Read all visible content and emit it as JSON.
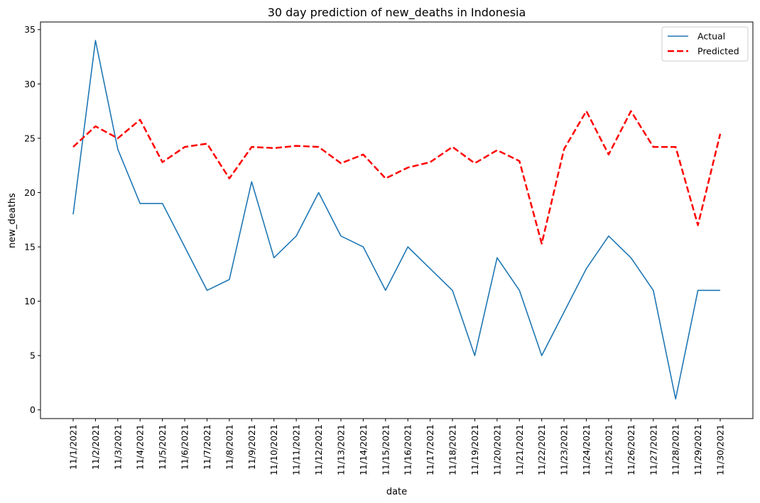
{
  "chart_data": {
    "type": "line",
    "title": "30 day prediction of new_deaths in Indonesia",
    "xlabel": "date",
    "ylabel": "new_deaths",
    "x": [
      "11/1/2021",
      "11/2/2021",
      "11/3/2021",
      "11/4/2021",
      "11/5/2021",
      "11/6/2021",
      "11/7/2021",
      "11/8/2021",
      "11/9/2021",
      "11/10/2021",
      "11/11/2021",
      "11/12/2021",
      "11/13/2021",
      "11/14/2021",
      "11/15/2021",
      "11/16/2021",
      "11/17/2021",
      "11/18/2021",
      "11/19/2021",
      "11/20/2021",
      "11/21/2021",
      "11/22/2021",
      "11/23/2021",
      "11/24/2021",
      "11/25/2021",
      "11/26/2021",
      "11/27/2021",
      "11/28/2021",
      "11/29/2021",
      "11/30/2021"
    ],
    "ylim": [
      -0.8,
      35.7
    ],
    "yticks": [
      0,
      5,
      10,
      15,
      20,
      25,
      30,
      35
    ],
    "grid": false,
    "legend_position": "top-right",
    "series": [
      {
        "name": "Actual",
        "color": "#1f77b4",
        "style": "solid",
        "values": [
          18,
          34,
          24,
          19,
          19,
          15,
          11,
          12,
          21,
          14,
          16,
          20,
          16,
          15,
          11,
          15,
          13,
          11,
          5,
          14,
          11,
          5,
          9,
          13,
          16,
          14,
          11,
          1,
          11,
          11
        ]
      },
      {
        "name": "Predicted",
        "color": "#ff0000",
        "style": "dashed",
        "values": [
          24.2,
          26.1,
          25.0,
          26.7,
          22.8,
          24.2,
          24.5,
          21.3,
          24.2,
          24.1,
          24.3,
          24.2,
          22.7,
          23.5,
          21.3,
          22.3,
          22.8,
          24.2,
          22.7,
          23.9,
          22.9,
          15.3,
          24.0,
          27.5,
          23.5,
          27.5,
          24.2,
          24.2,
          17.0,
          25.4
        ]
      }
    ]
  }
}
